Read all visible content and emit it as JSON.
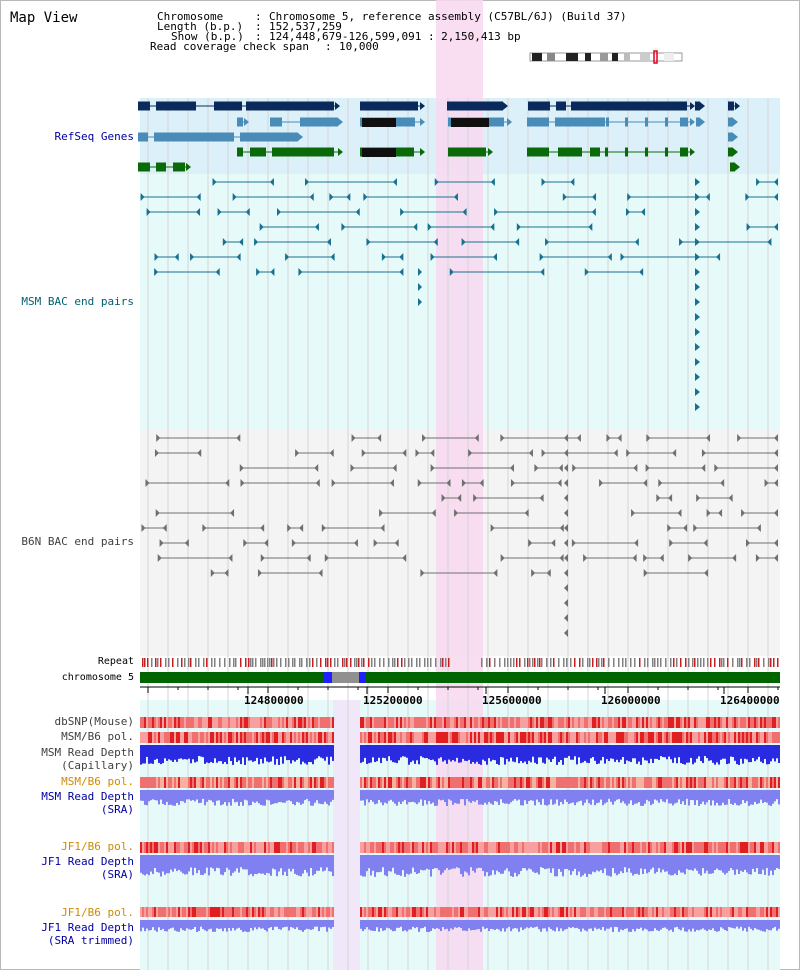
{
  "title": "Map View",
  "header": {
    "chromosome_label": "Chromosome",
    "chromosome_value": "Chromosome 5, reference assembly (C57BL/6J) (Build 37)",
    "length_label": "Length (b.p.)",
    "length_value": "152,537,259",
    "show_label": "Show (b.p.)",
    "show_value": "124,448,679-126,599,091 : 2,150,413 bp",
    "span_label": "Read coverage check span",
    "span_value": "10,000"
  },
  "tracks": {
    "refseq": "RefSeq Genes",
    "msm_bac": "MSM BAC end pairs",
    "b6n_bac": "B6N BAC end pairs",
    "repeat": "Repeat",
    "chromosome": "chromosome 5",
    "dbsnp": "dbSNP(Mouse)",
    "msm_b6_pol_1": "MSM/B6 pol.",
    "msm_depth_cap_1": "MSM Read Depth",
    "msm_depth_cap_2": "(Capillary)",
    "msm_b6_pol_2": "MSM/B6 pol.",
    "msm_depth_sra_1": "MSM Read Depth",
    "msm_depth_sra_2": "(SRA)",
    "jf1_b6_pol_1": "JF1/B6 pol.",
    "jf1_depth_sra_1": "JF1 Read Depth",
    "jf1_depth_sra_2": "(SRA)",
    "jf1_b6_pol_2": "JF1/B6 pol.",
    "jf1_depth_trim_1": "JF1 Read Depth",
    "jf1_depth_trim_2": "(SRA trimmed)"
  },
  "axis_ticks": [
    "124800000",
    "125200000",
    "125600000",
    "126000000",
    "126400000"
  ],
  "colors": {
    "refseq_band": "#dcf0fa",
    "bac_band": "#e6fafa",
    "highlight": "#f8d8f0",
    "gene_navy": "#0a2a5c",
    "gene_steel": "#4a8cb8",
    "gene_black": "#101010",
    "gene_green": "#0a6a0a",
    "bac_teal": "#1a7090",
    "bac_gray": "#707070",
    "chrom_green": "#006400",
    "polymorph_red": "#e84040",
    "depth_blue": "#2a2ae0",
    "depth_light": "#8080f0"
  }
}
